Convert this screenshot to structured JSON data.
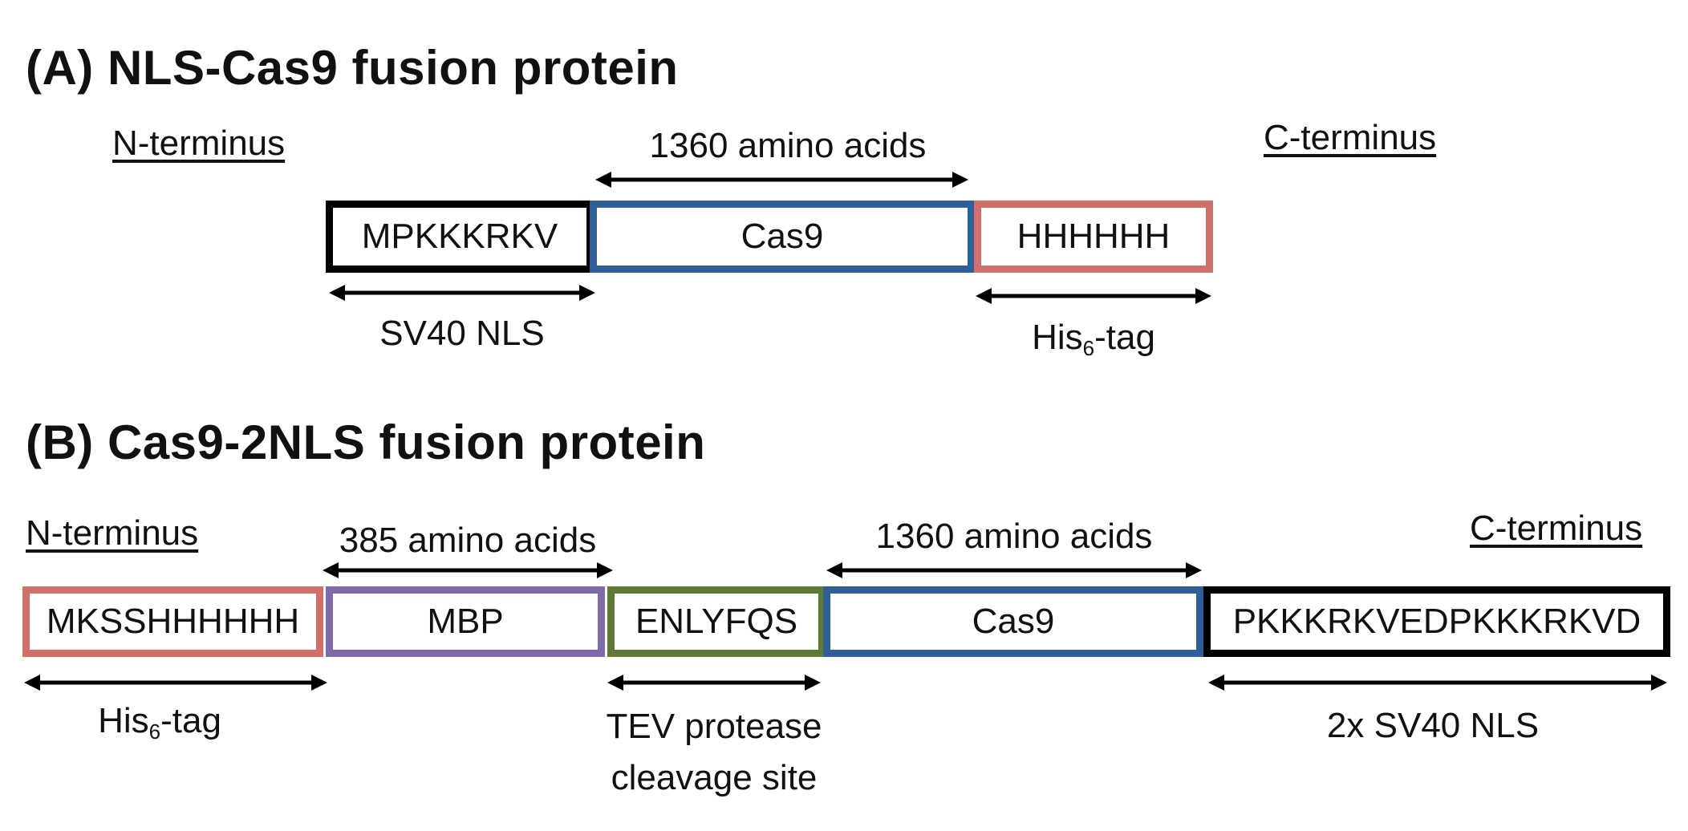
{
  "colors": {
    "black": "#000000",
    "blue": "#2f5f96",
    "red": "#d0706b",
    "purple": "#7e6aa6",
    "green": "#5f7a36"
  },
  "panel_a": {
    "title": "(A) NLS-Cas9 fusion protein",
    "n_terminus": "N-terminus",
    "c_terminus": "C-terminus",
    "cas9_length": "1360 amino acids",
    "boxes": [
      "MPKKKRKV",
      "Cas9",
      "HHHHHH"
    ],
    "nls_label": "SV40 NLS",
    "his_label_main": "His",
    "his_label_sub": "6",
    "his_label_suffix": "-tag"
  },
  "panel_b": {
    "title": "(B) Cas9-2NLS fusion protein",
    "n_terminus": "N-terminus",
    "c_terminus": "C-terminus",
    "mbp_length": "385 amino acids",
    "cas9_length": "1360 amino acids",
    "boxes": [
      "MKSSHHHHHH",
      "MBP",
      "ENLYFQS",
      "Cas9",
      "PKKKRKVEDPKKKRKVD"
    ],
    "his_label_main": "His",
    "his_label_sub": "6",
    "his_label_suffix": "-tag",
    "tev_label_line1": "TEV protease",
    "tev_label_line2": "cleavage site",
    "nls_label": "2x SV40 NLS"
  }
}
